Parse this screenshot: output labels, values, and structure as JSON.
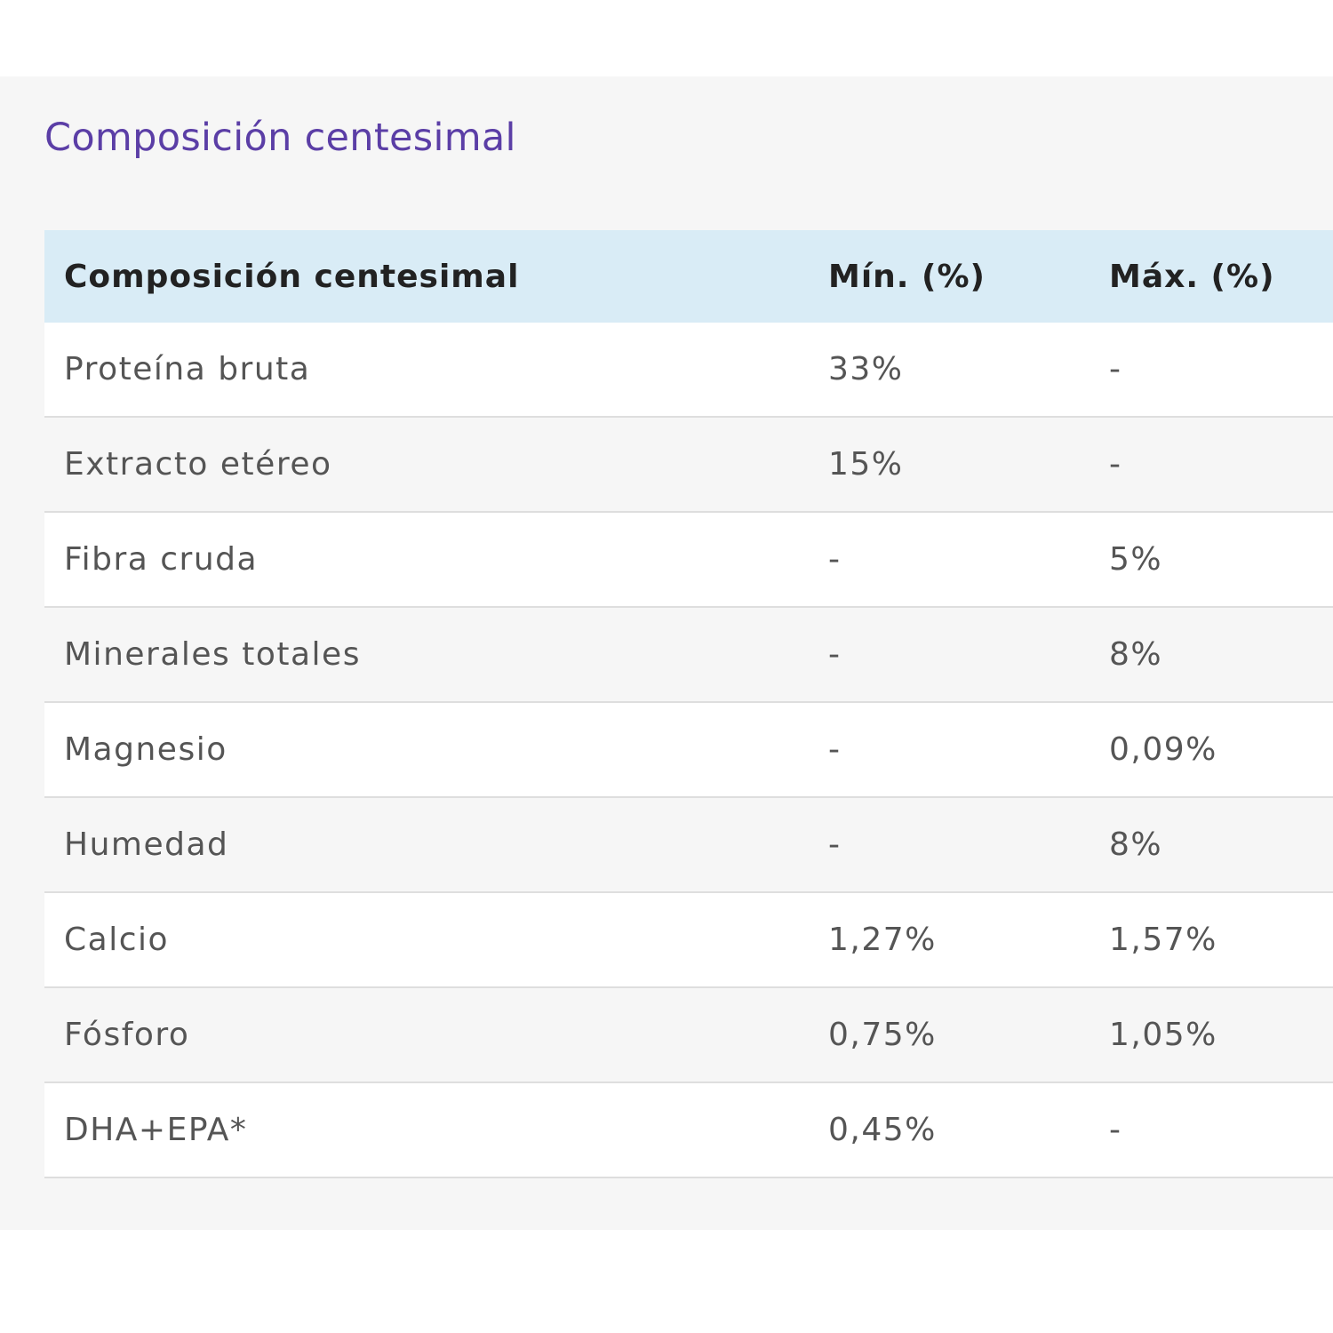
{
  "colors": {
    "title": "#5b3ea6",
    "header_bg": "#d9ecf6",
    "panel_bg": "#f6f6f6"
  },
  "section": {
    "title": "Composición centesimal"
  },
  "table": {
    "headers": [
      "Composición centesimal",
      "Mín. (%)",
      "Máx. (%)"
    ],
    "rows": [
      [
        "Proteína bruta",
        "33%",
        "-"
      ],
      [
        "Extracto etéreo",
        "15%",
        "-"
      ],
      [
        "Fibra cruda",
        "-",
        "5%"
      ],
      [
        "Minerales totales",
        "-",
        "8%"
      ],
      [
        "Magnesio",
        "-",
        "0,09%"
      ],
      [
        "Humedad",
        "-",
        "8%"
      ],
      [
        "Calcio",
        "1,27%",
        "1,57%"
      ],
      [
        "Fósforo",
        "0,75%",
        "1,05%"
      ],
      [
        "DHA+EPA*",
        "0,45%",
        "-"
      ]
    ]
  }
}
